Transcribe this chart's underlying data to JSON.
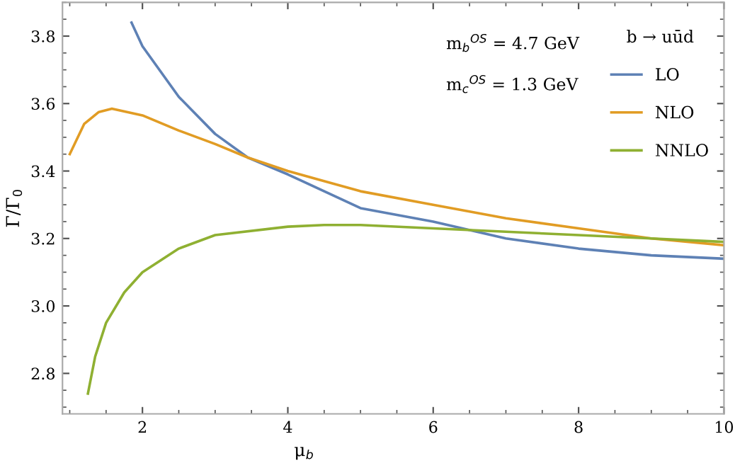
{
  "chart_data": {
    "type": "line",
    "xlabel": "μ$_{b}$",
    "ylabel": "Γ/Γ$_{0}$",
    "legend_title": "b → uūd",
    "annotations": [
      "m$_{b}$$^{OS}$ = 4.7 GeV",
      "m$_{c}$$^{OS}$ = 1.3 GeV"
    ],
    "xlim": [
      0.9,
      10
    ],
    "ylim": [
      2.68,
      3.9
    ],
    "xticks": [
      2,
      4,
      6,
      8,
      10
    ],
    "yticks": [
      2.8,
      {
        "value": 3.0,
        "label": "3.0"
      },
      3.2,
      3.4,
      3.6,
      3.8
    ],
    "grid": false,
    "legend": "top right",
    "marker": "none",
    "line_style": "solid",
    "series": [
      {
        "name": "LO",
        "color": "#5e81b5",
        "x": [
          1.85,
          2,
          2.5,
          3,
          3.45,
          4,
          5,
          6,
          7,
          8,
          9,
          10
        ],
        "values": [
          3.84,
          3.77,
          3.62,
          3.51,
          3.44,
          3.39,
          3.29,
          3.25,
          3.2,
          3.17,
          3.15,
          3.14
        ]
      },
      {
        "name": "NLO",
        "color": "#e19c24",
        "x": [
          1.0,
          1.2,
          1.4,
          1.58,
          2,
          2.5,
          3,
          3.45,
          4,
          5,
          6,
          7,
          8,
          9,
          10
        ],
        "values": [
          3.45,
          3.54,
          3.575,
          3.585,
          3.565,
          3.52,
          3.48,
          3.44,
          3.4,
          3.34,
          3.3,
          3.26,
          3.23,
          3.2,
          3.18
        ]
      },
      {
        "name": "NNLO",
        "color": "#8fb032",
        "x": [
          1.25,
          1.35,
          1.5,
          1.75,
          2,
          2.5,
          3,
          4,
          4.5,
          5,
          6,
          7,
          8,
          9,
          10
        ],
        "values": [
          2.74,
          2.85,
          2.95,
          3.04,
          3.1,
          3.17,
          3.21,
          3.235,
          3.24,
          3.24,
          3.23,
          3.22,
          3.21,
          3.2,
          3.19
        ]
      }
    ]
  }
}
